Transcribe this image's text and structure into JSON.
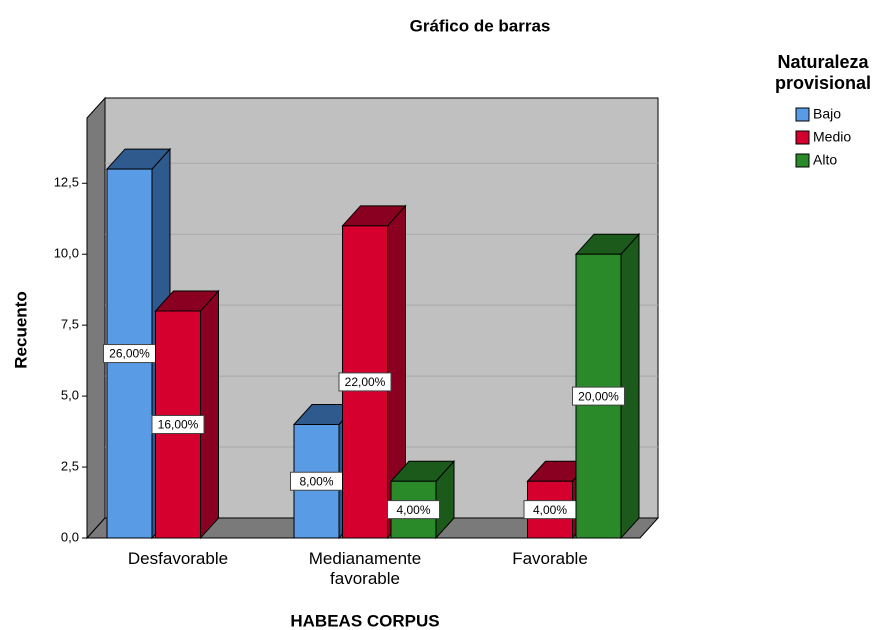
{
  "chart_data": {
    "type": "bar3d",
    "title": "Gráfico de barras",
    "x_label": "HABEAS CORPUS",
    "y_label": "Recuento",
    "legend_title": "Naturaleza provisional",
    "legend_position": "upper right",
    "grid": true,
    "categories": [
      "Desfavorable",
      "Medianamente favorable",
      "Favorable"
    ],
    "series": [
      {
        "name": "Bajo",
        "color": "#5a9be6",
        "side_color": "#2f5a8e",
        "values": [
          13,
          4,
          null
        ],
        "data_labels": [
          "26,00%",
          "8,00%",
          null
        ]
      },
      {
        "name": "Medio",
        "color": "#d6002f",
        "side_color": "#8a0020",
        "values": [
          8,
          11,
          2
        ],
        "data_labels": [
          "16,00%",
          "22,00%",
          "4,00%"
        ]
      },
      {
        "name": "Alto",
        "color": "#2a8a2a",
        "side_color": "#1b5a1b",
        "values": [
          null,
          2,
          10
        ],
        "data_labels": [
          null,
          "4,00%",
          "20,00%"
        ]
      }
    ],
    "ylim": [
      0,
      14.8
    ],
    "yticks": [
      {
        "value": 0,
        "label": "0,0"
      },
      {
        "value": 2.5,
        "label": "2,5"
      },
      {
        "value": 5,
        "label": "5,0"
      },
      {
        "value": 7.5,
        "label": "7,5"
      },
      {
        "value": 10,
        "label": "10,0"
      },
      {
        "value": 12.5,
        "label": "12,5"
      }
    ]
  }
}
